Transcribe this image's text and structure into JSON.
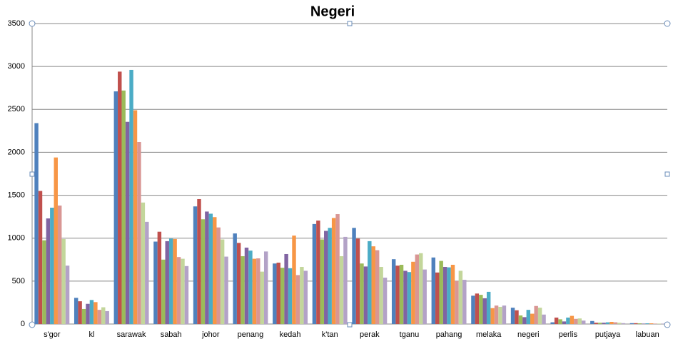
{
  "chart_data": {
    "type": "bar",
    "title": "Negeri",
    "categories": [
      "s'gor",
      "kl",
      "sarawak",
      "sabah",
      "johor",
      "penang",
      "kedah",
      "k'tan",
      "perak",
      "tganu",
      "pahang",
      "melaka",
      "negeri",
      "perlis",
      "putjaya",
      "labuan"
    ],
    "series": [
      {
        "color": "#4f81bd",
        "values": [
          2340,
          305,
          2710,
          960,
          1370,
          1055,
          705,
          1165,
          1120,
          755,
          775,
          330,
          190,
          20,
          35,
          10
        ]
      },
      {
        "color": "#c0504d",
        "values": [
          1550,
          265,
          2940,
          1075,
          1455,
          945,
          715,
          1205,
          995,
          680,
          600,
          355,
          160,
          75,
          15,
          10
        ]
      },
      {
        "color": "#9bbb59",
        "values": [
          975,
          175,
          2720,
          750,
          1220,
          790,
          655,
          985,
          705,
          690,
          735,
          340,
          100,
          55,
          15,
          8
        ]
      },
      {
        "color": "#8064a2",
        "values": [
          1230,
          235,
          2355,
          965,
          1310,
          890,
          815,
          1085,
          670,
          620,
          665,
          300,
          80,
          30,
          15,
          5
        ]
      },
      {
        "color": "#4bacc6",
        "values": [
          1355,
          280,
          2960,
          995,
          1285,
          855,
          650,
          1120,
          965,
          605,
          660,
          375,
          165,
          75,
          20,
          8
        ]
      },
      {
        "color": "#f79646",
        "values": [
          1940,
          255,
          2490,
          990,
          1245,
          760,
          1030,
          1235,
          905,
          725,
          690,
          185,
          120,
          95,
          25,
          8
        ]
      },
      {
        "color": "#d99694",
        "values": [
          1380,
          165,
          2120,
          780,
          1125,
          765,
          570,
          1280,
          860,
          810,
          500,
          215,
          210,
          60,
          20,
          5
        ]
      },
      {
        "color": "#c3d69b",
        "values": [
          990,
          195,
          1415,
          760,
          985,
          610,
          665,
          790,
          665,
          825,
          620,
          200,
          190,
          65,
          15,
          5
        ]
      },
      {
        "color": "#b3a2c7",
        "values": [
          680,
          150,
          1190,
          675,
          785,
          845,
          620,
          1015,
          540,
          635,
          515,
          215,
          110,
          40,
          10,
          5
        ]
      }
    ],
    "ylim": [
      0,
      3500
    ],
    "yticks": [
      0,
      500,
      1000,
      1500,
      2000,
      2500,
      3000,
      3500
    ],
    "grid": true
  }
}
